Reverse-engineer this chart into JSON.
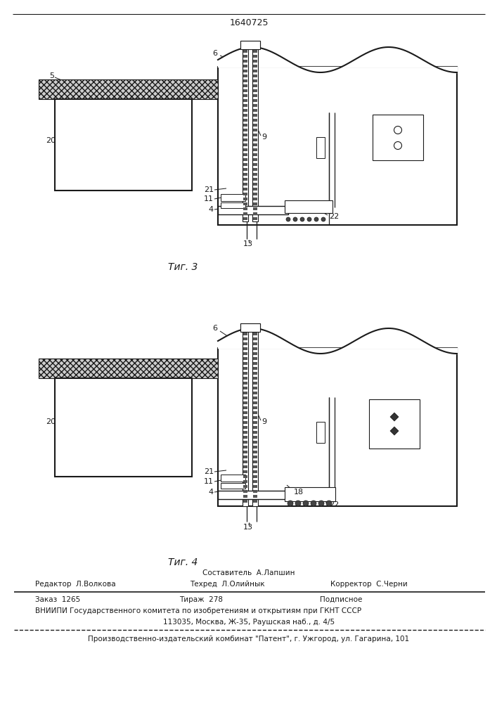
{
  "patent_number": "1640725",
  "fig3_label": "Τиг. 3",
  "fig4_label": "Τиг. 4",
  "footer_sestavitel": "Составитель  А.Лапшин",
  "footer_redaktor": "Редактор  Л.Волкова",
  "footer_tehred": "Техред  Л.Олийнык",
  "footer_korrektor": "Корректор  С.Черни",
  "footer_zakaz": "Заказ  1265",
  "footer_tirazh": "Тираж  278",
  "footer_podpisnoe": "Подписное",
  "footer_vniipи": "ВНИИПИ Государственного комитета по изобретениям и открытиям при ГКНТ СССР",
  "footer_address": "113035, Москва, Ж-35, Раушская наб., д. 4/5",
  "footer_patent": "Производственно-издательский комбинат \"Патент\", г. Ужгород, ул. Гагарина, 101",
  "bg_color": "#ffffff",
  "line_color": "#1a1a1a"
}
